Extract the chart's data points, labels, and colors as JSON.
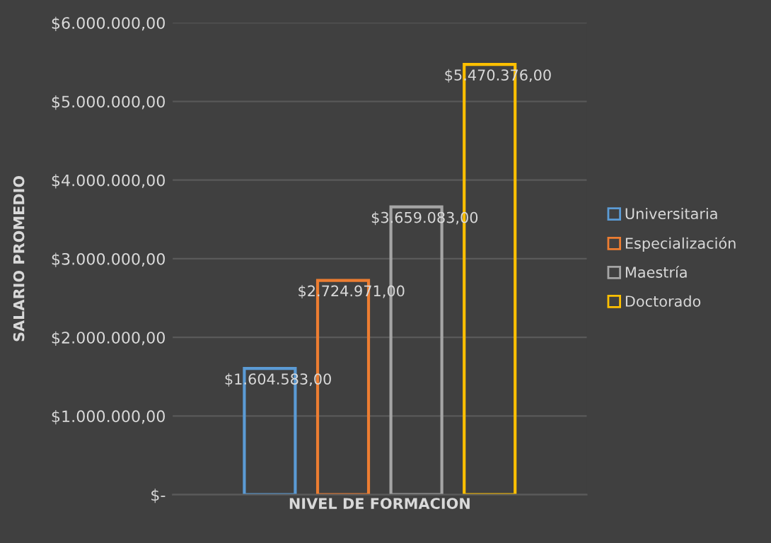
{
  "chart_data": {
    "type": "bar",
    "xlabel": "NIVEL DE FORMACION",
    "ylabel": "SALARIO PROMEDIO",
    "categories": [
      null
    ],
    "series": [
      {
        "name": "Universitaria",
        "color": "#5b9bd5",
        "values": [
          1604583
        ],
        "value_labels": [
          "$1.604.583,00"
        ]
      },
      {
        "name": "Especialización",
        "color": "#ed7d31",
        "values": [
          2724971
        ],
        "value_labels": [
          "$2.724.971,00"
        ]
      },
      {
        "name": "Maestría",
        "color": "#a5a5a5",
        "values": [
          3659083
        ],
        "value_labels": [
          "$3.659.083,00"
        ]
      },
      {
        "name": "Doctorado",
        "color": "#ffc000",
        "values": [
          5470376
        ],
        "value_labels": [
          "$5.470.376,00"
        ]
      }
    ],
    "ylim": [
      0,
      6000000
    ],
    "yticks": [
      {
        "value": 0,
        "label": "$-"
      },
      {
        "value": 1000000,
        "label": "$1.000.000,00"
      },
      {
        "value": 2000000,
        "label": "$2.000.000,00"
      },
      {
        "value": 3000000,
        "label": "$3.000.000,00"
      },
      {
        "value": 4000000,
        "label": "$4.000.000,00"
      },
      {
        "value": 5000000,
        "label": "$5.000.000,00"
      },
      {
        "value": 6000000,
        "label": "$6.000.000,00"
      }
    ],
    "grid": "y",
    "legend": "right"
  }
}
